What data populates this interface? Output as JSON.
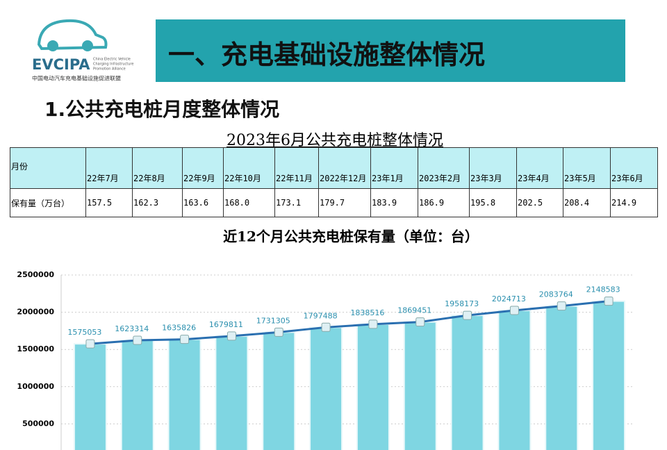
{
  "logo": {
    "name": "EVCIPA",
    "english": [
      "China Electric Vehicle",
      "Charging Infrastructure",
      "Promotion Alliance"
    ],
    "chinese": "中国电动汽车充电基础设施促进联盟"
  },
  "header": {
    "title": "一、充电基础设施整体情况"
  },
  "section": {
    "title": "1.公共充电桩月度整体情况"
  },
  "table": {
    "title": "2023年6月公共充电桩整体情况",
    "rows": [
      [
        "月份",
        "22年7月",
        "22年8月",
        "22年9月",
        "22年10月",
        "22年11月",
        "2022年12月",
        "23年1月",
        "2023年2月",
        "23年3月",
        "23年4月",
        "23年5月",
        "23年6月"
      ],
      [
        "保有量（万台）",
        "157.5",
        "162.3",
        "163.6",
        "168.0",
        "173.1",
        "179.7",
        "183.9",
        "186.9",
        "195.8",
        "202.5",
        "208.4",
        "214.9"
      ]
    ]
  },
  "chart_data": {
    "type": "bar_line",
    "title": "近12个月公共充电桩保有量（单位：台）",
    "values": [
      1575053,
      1623314,
      1635826,
      1679811,
      1731305,
      1797488,
      1838516,
      1869451,
      1958173,
      2024713,
      2083764,
      2148583
    ],
    "bar_color": "#7fd6e2",
    "line_color": "#2a6fb0",
    "label_color": "#2a8fae",
    "ylim": [
      0,
      2500000
    ],
    "yticks": [
      500000,
      1000000,
      1500000,
      2000000,
      2500000
    ],
    "grid": true
  }
}
